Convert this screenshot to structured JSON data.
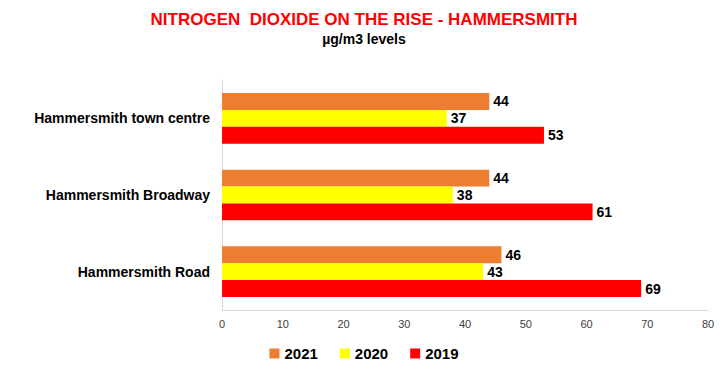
{
  "chart_data": {
    "type": "bar",
    "title": "NITROGEN  DIOXIDE ON THE RISE - HAMMERSMITH",
    "subtitle": "µg/m3 levels",
    "orientation": "horizontal",
    "categories": [
      "Hammersmith town centre",
      "Hammersmith Broadway",
      "Hammersmith Road"
    ],
    "series": [
      {
        "name": "2021",
        "color": "#ed7d31",
        "values": [
          44,
          44,
          46
        ]
      },
      {
        "name": "2020",
        "color": "#ffff00",
        "values": [
          37,
          38,
          43
        ]
      },
      {
        "name": "2019",
        "color": "#ff0000",
        "values": [
          53,
          61,
          69
        ]
      }
    ],
    "xlim": [
      0,
      80
    ],
    "xticks": [
      0,
      10,
      20,
      30,
      40,
      50,
      60,
      70,
      80
    ],
    "grid": false,
    "data_labels": true,
    "legend": "bottom"
  }
}
